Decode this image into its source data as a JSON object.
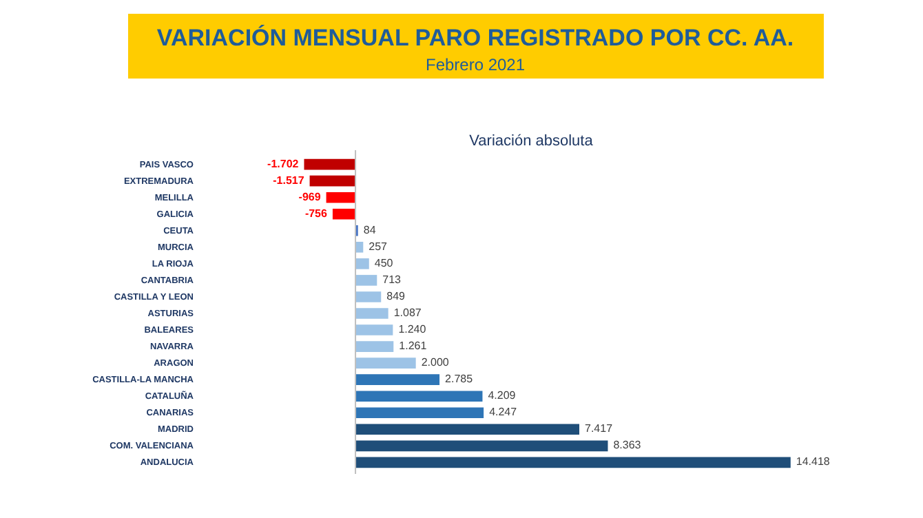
{
  "chart_data": {
    "type": "bar",
    "orientation": "horizontal",
    "title": "VARIACIÓN MENSUAL PARO REGISTRADO POR CC. AA.",
    "subtitle": "Febrero 2021",
    "xlabel": "Variación absoluta",
    "categories": [
      "PAIS VASCO",
      "EXTREMADURA",
      "MELILLA",
      "GALICIA",
      "CEUTA",
      "MURCIA",
      "LA RIOJA",
      "CANTABRIA",
      "CASTILLA Y LEON",
      "ASTURIAS",
      "BALEARES",
      "NAVARRA",
      "ARAGON",
      "CASTILLA-LA MANCHA",
      "CATALUÑA",
      "CANARIAS",
      "MADRID",
      "COM. VALENCIANA",
      "ANDALUCIA"
    ],
    "values": [
      -1702,
      -1517,
      -969,
      -756,
      84,
      257,
      450,
      713,
      849,
      1087,
      1240,
      1261,
      2000,
      2785,
      4209,
      4247,
      7417,
      8363,
      14418
    ],
    "value_labels": [
      "-1.702",
      "-1.517",
      "-969",
      "-756",
      "84",
      "257",
      "450",
      "713",
      "849",
      "1.087",
      "1.240",
      "1.261",
      "2.000",
      "2.785",
      "4.209",
      "4.247",
      "7.417",
      "8.363",
      "14.418"
    ],
    "colors": [
      "#c00000",
      "#c00000",
      "#ff0000",
      "#ff0000",
      "#4472c4",
      "#9dc3e6",
      "#9dc3e6",
      "#9dc3e6",
      "#9dc3e6",
      "#9dc3e6",
      "#9dc3e6",
      "#9dc3e6",
      "#9dc3e6",
      "#2e75b6",
      "#2e75b6",
      "#2e75b6",
      "#1f4e79",
      "#1f4e79",
      "#1f4e79"
    ],
    "ref_lines": [
      {
        "axis": "x",
        "value": 0,
        "color": "#bfbfbf"
      }
    ],
    "tick_labels": "y",
    "grid": false
  }
}
